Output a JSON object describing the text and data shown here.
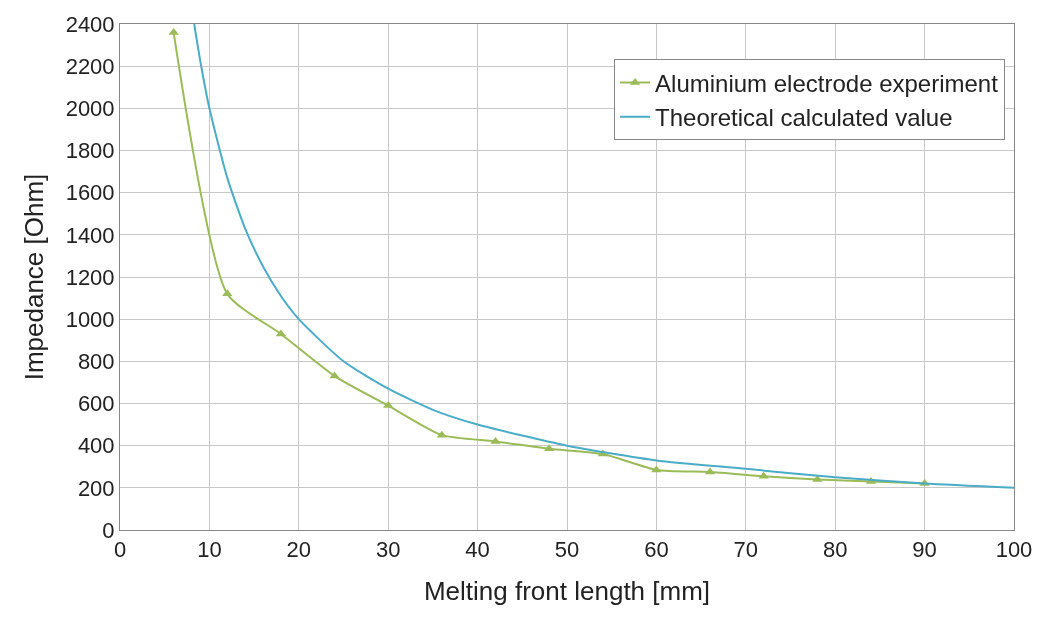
{
  "chart_data": {
    "type": "line",
    "xlabel": "Melting front length [mm]",
    "ylabel": "Impedance [Ohm]",
    "xlim": [
      0,
      100
    ],
    "xticks": [
      0,
      10,
      20,
      30,
      40,
      50,
      60,
      70,
      80,
      90,
      100
    ],
    "ylim": [
      0,
      2400
    ],
    "yticks": [
      0,
      200,
      400,
      600,
      800,
      1000,
      1200,
      1400,
      1600,
      1800,
      2000,
      2200,
      2400
    ],
    "grid": true,
    "legend": "top right",
    "series": [
      {
        "name": "Aluminium electrode experiment",
        "color": "#9bbb59",
        "marker": "triangle",
        "x": [
          6,
          12,
          18,
          24,
          30,
          36,
          42,
          48,
          54,
          60,
          66,
          72,
          78,
          84,
          90
        ],
        "values": [
          2360,
          1120,
          930,
          730,
          590,
          450,
          420,
          385,
          360,
          285,
          275,
          255,
          240,
          230,
          220
        ]
      },
      {
        "name": "Theoretical calculated value",
        "color": "#4bacc6",
        "marker": "none",
        "x": [
          8.3,
          9,
          10,
          12,
          14,
          16,
          18,
          20,
          25,
          30,
          35,
          40,
          50,
          60,
          70,
          80,
          90,
          100
        ],
        "values": [
          2400,
          2220,
          2000,
          1670,
          1430,
          1250,
          1110,
          1000,
          800,
          670,
          570,
          500,
          400,
          330,
          290,
          250,
          220,
          200
        ]
      }
    ]
  }
}
